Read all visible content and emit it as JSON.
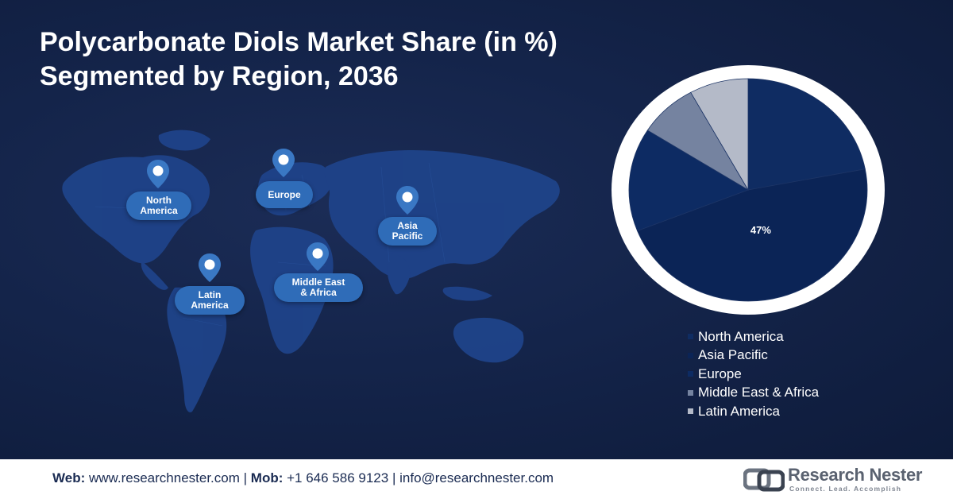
{
  "title": {
    "line1": "Polycarbonate Diols Market Share (in %)",
    "line2": "Segmented by Region, 2036"
  },
  "map": {
    "regions": [
      {
        "label_line1": "North",
        "label_line2": "America"
      },
      {
        "label_line1": "Europe",
        "label_line2": ""
      },
      {
        "label_line1": "Asia",
        "label_line2": "Pacific"
      },
      {
        "label_line1": "Middle East",
        "label_line2": "& Africa"
      },
      {
        "label_line1": "Latin",
        "label_line2": "America"
      }
    ],
    "pin_icon": "map-pin-icon"
  },
  "chart_data": {
    "type": "pie",
    "title": "Polycarbonate Diols Market Share (in %) Segmented by Region, 2036",
    "categories": [
      "North America",
      "Asia Pacific",
      "Europe",
      "Middle East & Africa",
      "Latin America"
    ],
    "values": [
      22,
      47,
      15,
      8,
      8
    ],
    "data_labels": [
      "",
      "47%",
      "",
      "",
      ""
    ],
    "colors": [
      "#0f2c62",
      "#0b2456",
      "#0d2b63",
      "#7583a0",
      "#b4bac8"
    ],
    "start": "12 o'clock, clockwise",
    "legend_position": "bottom-right",
    "legend": [
      {
        "label": "North America",
        "color": "#0f2c62"
      },
      {
        "label": "Asia Pacific",
        "color": "#0b2456"
      },
      {
        "label": "Europe",
        "color": "#0d2b63"
      },
      {
        "label": "Middle East & Africa",
        "color": "#7583a0"
      },
      {
        "label": "Latin America",
        "color": "#b4bac8"
      }
    ]
  },
  "footer": {
    "web_label": "Web:",
    "web_value": "www.researchnester.com",
    "separator": "|",
    "mob_label": "Mob:",
    "mob_value": "+1 646 586 9123",
    "email": "info@researchnester.com",
    "logo_name": "Research Nester",
    "logo_tagline": "Connect. Lead. Accomplish",
    "logo_icon": "research-nester-logo-icon"
  },
  "colors": {
    "background": "#14244a",
    "label_fill": "#2f6cb8",
    "map_land": "#1f4389",
    "pie_ring": "#ffffff"
  }
}
